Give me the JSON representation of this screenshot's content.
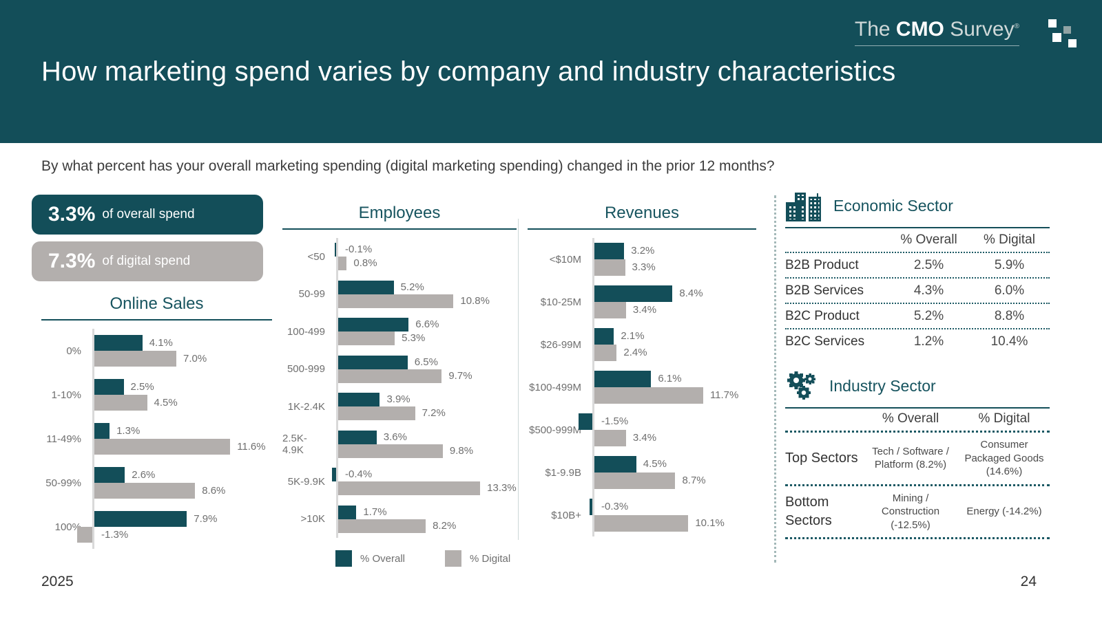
{
  "slide": {
    "title": "How marketing spend varies by company and industry characteristics",
    "question": "By what percent has your overall marketing spending (digital marketing spending) changed in the prior 12 months?",
    "year": "2025",
    "page_number": "24"
  },
  "logo": {
    "the": "The ",
    "cmo": "CMO",
    "survey": " Survey",
    "registered": "®"
  },
  "badges": {
    "overall": {
      "value": "3.3%",
      "label": "of overall spend"
    },
    "digital": {
      "value": "7.3%",
      "label": "of digital spend"
    }
  },
  "colors": {
    "teal": "#134E59",
    "gray": "#B3AFAD",
    "axis": "#D9D9D9"
  },
  "legend": [
    {
      "label": "% Overall",
      "color": "#134E59"
    },
    {
      "label": "% Digital",
      "color": "#B3AFAD"
    }
  ],
  "chart_data": [
    {
      "type": "bar",
      "orientation": "horizontal",
      "title": "Online Sales",
      "unit": "%",
      "xlim": [
        -2,
        13
      ],
      "categories": [
        "0%",
        "1-10%",
        "11-49%",
        "50-99%",
        "100%"
      ],
      "series": [
        {
          "name": "% Overall",
          "values": [
            4.1,
            2.5,
            1.3,
            2.6,
            7.9
          ]
        },
        {
          "name": "% Digital",
          "values": [
            7.0,
            4.5,
            11.6,
            8.6,
            -1.3
          ]
        }
      ]
    },
    {
      "type": "bar",
      "orientation": "horizontal",
      "title": "Employees",
      "unit": "%",
      "xlim": [
        -1,
        14
      ],
      "categories": [
        "<50",
        "50-99",
        "100-499",
        "500-999",
        "1K-2.4K",
        "2.5K-4.9K",
        "5K-9.9K",
        ">10K"
      ],
      "series": [
        {
          "name": "% Overall",
          "values": [
            -0.1,
            5.2,
            6.6,
            6.5,
            3.9,
            3.6,
            -0.4,
            1.7
          ]
        },
        {
          "name": "% Digital",
          "values": [
            0.8,
            10.8,
            5.3,
            9.7,
            7.2,
            9.8,
            13.3,
            8.2
          ]
        }
      ]
    },
    {
      "type": "bar",
      "orientation": "horizontal",
      "title": "Revenues",
      "unit": "%",
      "xlim": [
        -2,
        13
      ],
      "categories": [
        "<$10M",
        "$10-25M",
        "$26-99M",
        "$100-499M",
        "$500-999M",
        "$1-9.9B",
        "$10B+"
      ],
      "series": [
        {
          "name": "% Overall",
          "values": [
            3.2,
            8.4,
            2.1,
            6.1,
            -1.5,
            4.5,
            -0.3
          ]
        },
        {
          "name": "% Digital",
          "values": [
            3.3,
            3.4,
            2.4,
            11.7,
            3.4,
            8.7,
            10.1
          ]
        }
      ]
    }
  ],
  "economic_sector": {
    "title": "Economic Sector",
    "columns": [
      "% Overall",
      "% Digital"
    ],
    "rows": [
      {
        "label": "B2B Product",
        "overall": "2.5%",
        "digital": "5.9%"
      },
      {
        "label": "B2B Services",
        "overall": "4.3%",
        "digital": "6.0%"
      },
      {
        "label": "B2C Product",
        "overall": "5.2%",
        "digital": "8.8%"
      },
      {
        "label": "B2C Services",
        "overall": "1.2%",
        "digital": "10.4%"
      }
    ]
  },
  "industry_sector": {
    "title": "Industry Sector",
    "columns": [
      "% Overall",
      "% Digital"
    ],
    "rows": [
      {
        "label": "Top Sectors",
        "overall": "Tech / Software / Platform (8.2%)",
        "digital": "Consumer Packaged Goods (14.6%)"
      },
      {
        "label": "Bottom Sectors",
        "overall": "Mining / Construction (-12.5%)",
        "digital": "Energy (-14.2%)"
      }
    ]
  }
}
